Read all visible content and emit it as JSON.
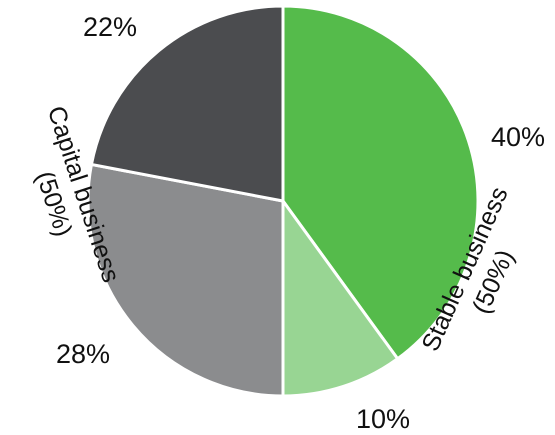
{
  "chart_data": {
    "type": "pie",
    "slices": [
      {
        "label": "40%",
        "value": 40,
        "color": "#55bb4b"
      },
      {
        "label": "10%",
        "value": 10,
        "color": "#98d593"
      },
      {
        "label": "28%",
        "value": 28,
        "color": "#8b8c8e"
      },
      {
        "label": "22%",
        "value": 22,
        "color": "#4b4c4f"
      }
    ],
    "groups": [
      {
        "name": "Stable business",
        "share": "(50%)",
        "slices": [
          "40%",
          "10%"
        ]
      },
      {
        "name": "Capital business",
        "share": "(50%)",
        "slices": [
          "28%",
          "22%"
        ]
      }
    ],
    "start": "12 o'clock",
    "direction": "clockwise",
    "legend": "none"
  }
}
